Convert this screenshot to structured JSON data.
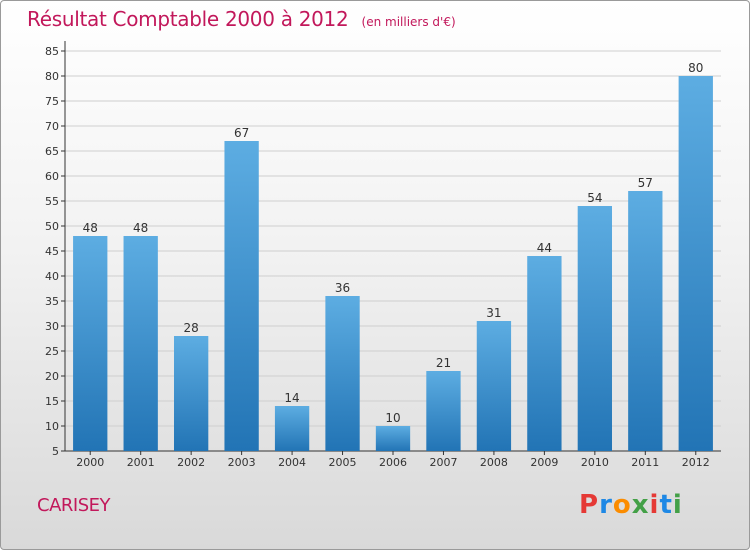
{
  "header": {
    "title": "Résultat Comptable 2000 à 2012",
    "subtitle": "(en milliers d'€)"
  },
  "footer": {
    "commune": "CARISEY",
    "logo": {
      "text": "Proxiti",
      "colors": [
        "#e53935",
        "#1e88e5",
        "#fb8c00",
        "#43a047",
        "#e53935",
        "#1e88e5",
        "#43a047"
      ]
    }
  },
  "colors": {
    "bar_top": "#5dade2",
    "bar_bottom": "#2274b5",
    "axis": "#333333",
    "grid": "#cfcfcf",
    "accent": "#c2185b"
  },
  "chart_data": {
    "type": "bar",
    "title": "Résultat Comptable 2000 à 2012",
    "subtitle": "(en milliers d'€)",
    "categories": [
      "2000",
      "2001",
      "2002",
      "2003",
      "2004",
      "2005",
      "2006",
      "2007",
      "2008",
      "2009",
      "2010",
      "2011",
      "2012"
    ],
    "values": [
      48,
      48,
      28,
      67,
      14,
      36,
      10,
      21,
      31,
      44,
      54,
      57,
      80
    ],
    "ylim": [
      5,
      85
    ],
    "yticks": [
      5,
      10,
      15,
      20,
      25,
      30,
      35,
      40,
      45,
      50,
      55,
      60,
      65,
      70,
      75,
      80,
      85
    ],
    "grid": true,
    "legend": "none"
  }
}
